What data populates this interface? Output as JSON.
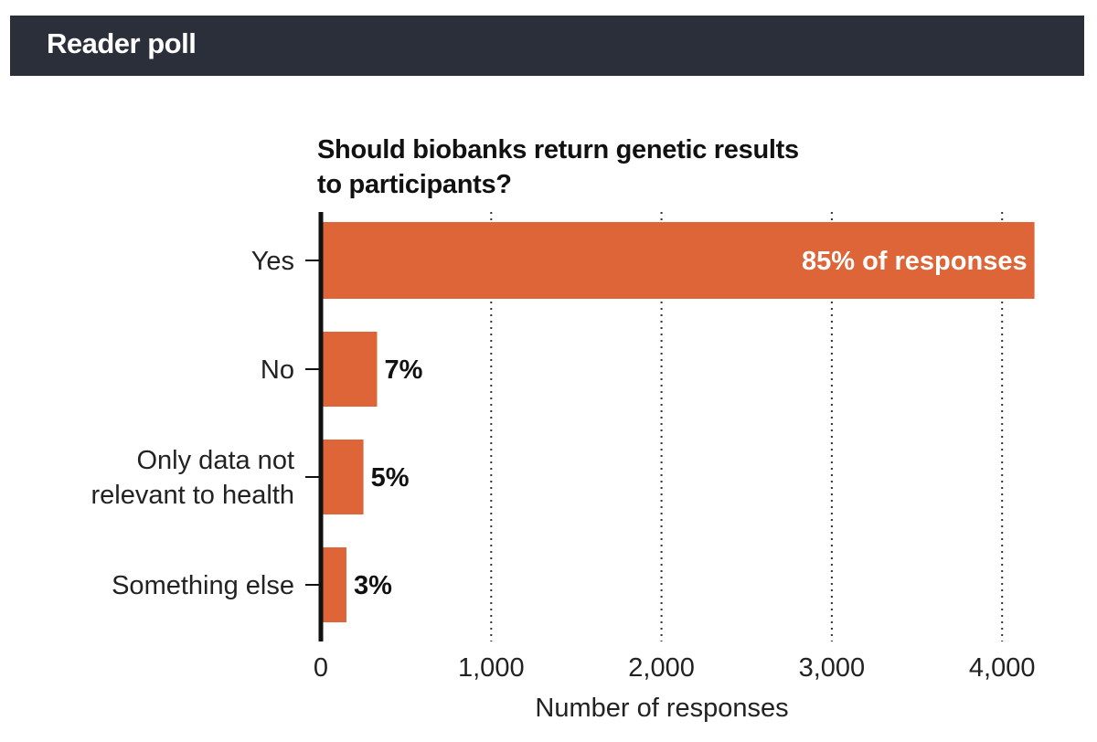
{
  "header": {
    "title": "Reader poll"
  },
  "colors": {
    "header_bg": "#2a2f3a",
    "bar": "#dd6538",
    "axis": "#111111",
    "grid": "#333333"
  },
  "chart_data": {
    "type": "bar",
    "orientation": "horizontal",
    "title": "Should biobanks return genetic results to participants?",
    "xlabel": "Number of responses",
    "ylabel": "",
    "xlim": [
      0,
      4200
    ],
    "xticks": [
      0,
      1000,
      2000,
      3000,
      4000
    ],
    "xtick_labels": [
      "0",
      "1,000",
      "2,000",
      "3,000",
      "4,000"
    ],
    "grid": "vertical dotted",
    "categories": [
      [
        "Yes"
      ],
      [
        "No"
      ],
      [
        "Only data not",
        "relevant to health"
      ],
      [
        "Something else"
      ]
    ],
    "values": [
      4190,
      330,
      250,
      150
    ],
    "data_labels": [
      "85% of responses",
      "7%",
      "5%",
      "3%"
    ]
  }
}
